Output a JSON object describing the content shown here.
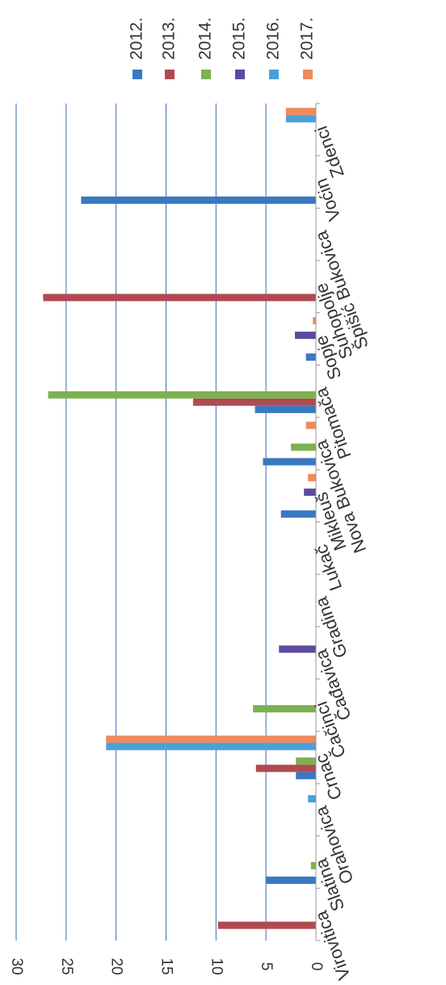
{
  "chart_data": {
    "type": "bar",
    "orientation": "rotated",
    "categories": [
      "Virovitica",
      "Slatina",
      "Orahovica",
      "Crnac",
      "Čačinci",
      "Čađavica",
      "Gradina",
      "Lukač",
      "Mikleuš",
      "Nova Bukovica",
      "Pitomača",
      "Sopje",
      "Suhopolje",
      "Špišić Bukovica",
      "Voćin",
      "Zdenci"
    ],
    "series": [
      {
        "name": "2012.",
        "color": "#3a78c2",
        "values": [
          0,
          5,
          0,
          2,
          0,
          0,
          0,
          0,
          3.5,
          5.3,
          6.1,
          1,
          0,
          0,
          23.5,
          0
        ]
      },
      {
        "name": "2013.",
        "color": "#b04a52",
        "values": [
          9.8,
          0,
          0,
          6,
          0,
          0,
          0,
          0,
          0,
          0,
          12.3,
          0,
          27.3,
          0,
          0,
          0
        ]
      },
      {
        "name": "2014.",
        "color": "#7db150",
        "values": [
          0,
          0.5,
          0,
          2,
          6.3,
          0,
          0,
          0,
          0,
          2.5,
          26.8,
          0,
          0,
          0,
          0,
          0
        ]
      },
      {
        "name": "2015.",
        "color": "#5d4a9e",
        "values": [
          0,
          0,
          0,
          0,
          0,
          3.7,
          0,
          0,
          1.2,
          0,
          0,
          2.1,
          0,
          0,
          0,
          0
        ]
      },
      {
        "name": "2016.",
        "color": "#4aa0d8",
        "values": [
          0,
          0,
          0.8,
          21,
          0,
          0,
          0,
          0,
          0,
          0,
          0,
          0,
          0,
          0,
          0,
          3
        ]
      },
      {
        "name": "2017.",
        "color": "#f08a5a",
        "values": [
          0,
          0,
          0,
          21,
          0,
          0,
          0,
          0,
          0.8,
          1,
          0,
          0.3,
          0,
          0,
          0,
          3
        ]
      }
    ],
    "ylim": [
      0,
      30
    ],
    "yticks": [
      "0",
      "5",
      "10",
      "15",
      "20",
      "25",
      "30"
    ],
    "grid": true,
    "legend_position": "top-right",
    "title": "",
    "xlabel": "",
    "ylabel": ""
  }
}
